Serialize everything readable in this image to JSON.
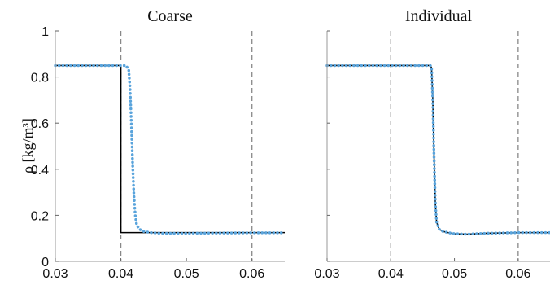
{
  "chart_data": [
    {
      "type": "line",
      "title": "Coarse",
      "ylabel": "ρ [kg/m³]",
      "xlabel": "",
      "xlim": [
        0.03,
        0.065
      ],
      "ylim": [
        0,
        1
      ],
      "x_ticks": [
        0.03,
        0.04,
        0.05,
        0.06
      ],
      "x_tick_labels": [
        "0.03",
        "0.04",
        "0.05",
        "0.06"
      ],
      "y_ticks": [
        0,
        0.2,
        0.4,
        0.6,
        0.8,
        1
      ],
      "y_tick_labels": [
        "0",
        "0.2",
        "0.4",
        "0.6",
        "0.8",
        "1"
      ],
      "vlines": [
        0.04,
        0.06
      ],
      "series": [
        {
          "style": "solid",
          "color": "#000000",
          "x": [
            0.03,
            0.04,
            0.04,
            0.065
          ],
          "y": [
            0.85,
            0.85,
            0.125,
            0.125
          ]
        },
        {
          "style": "dotted",
          "color": "#5aa4dc",
          "x": [
            0.03,
            0.0408,
            0.0412,
            0.0414,
            0.0416,
            0.0418,
            0.042,
            0.0422,
            0.0424,
            0.0428,
            0.0435,
            0.0445,
            0.046,
            0.05,
            0.055,
            0.06,
            0.065
          ],
          "y": [
            0.85,
            0.85,
            0.83,
            0.75,
            0.6,
            0.42,
            0.28,
            0.2,
            0.16,
            0.14,
            0.13,
            0.125,
            0.122,
            0.122,
            0.123,
            0.124,
            0.124
          ]
        }
      ]
    },
    {
      "type": "line",
      "title": "Individual",
      "xlabel": "",
      "xlim": [
        0.03,
        0.065
      ],
      "ylim": [
        0,
        1
      ],
      "x_ticks": [
        0.03,
        0.04,
        0.05,
        0.06
      ],
      "x_tick_labels": [
        "0.03",
        "0.04",
        "0.05",
        "0.06"
      ],
      "y_ticks": [
        0,
        0.2,
        0.4,
        0.6,
        0.8,
        1
      ],
      "y_tick_labels": [],
      "vlines": [
        0.04,
        0.06
      ],
      "series": [
        {
          "style": "solid",
          "color": "#000000",
          "x": [
            0.03,
            0.0462,
            0.0464,
            0.0466,
            0.0468,
            0.047,
            0.0472,
            0.0476,
            0.0482,
            0.049,
            0.05,
            0.052,
            0.055,
            0.06,
            0.065
          ],
          "y": [
            0.85,
            0.85,
            0.84,
            0.7,
            0.45,
            0.25,
            0.17,
            0.14,
            0.13,
            0.125,
            0.12,
            0.118,
            0.122,
            0.125,
            0.125
          ]
        },
        {
          "style": "dotted",
          "color": "#5aa4dc",
          "x": [
            0.03,
            0.0462,
            0.0464,
            0.0466,
            0.0468,
            0.047,
            0.0472,
            0.0476,
            0.0482,
            0.049,
            0.05,
            0.052,
            0.055,
            0.06,
            0.065
          ],
          "y": [
            0.85,
            0.85,
            0.84,
            0.7,
            0.45,
            0.25,
            0.17,
            0.14,
            0.13,
            0.125,
            0.12,
            0.118,
            0.122,
            0.125,
            0.125
          ]
        }
      ]
    }
  ]
}
